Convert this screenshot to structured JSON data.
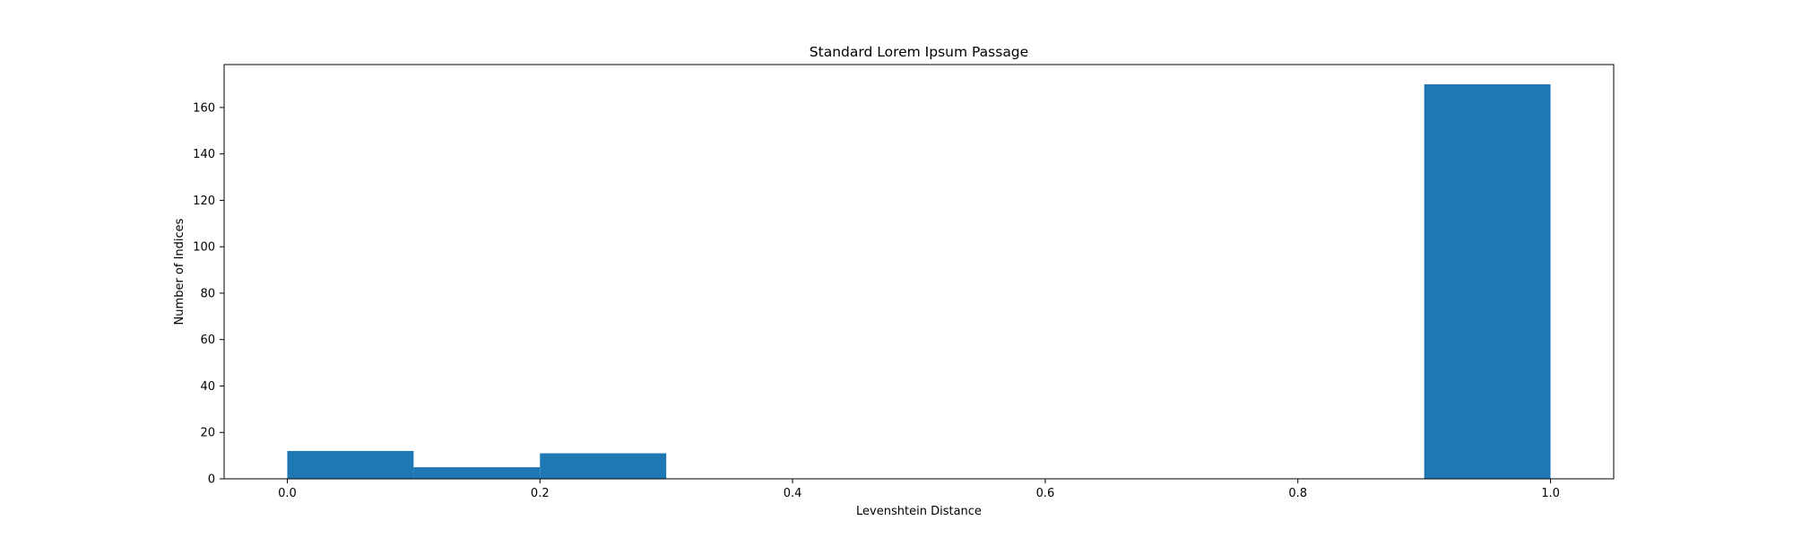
{
  "chart_data": {
    "type": "bar",
    "title": "Standard Lorem Ipsum Passage",
    "xlabel": "Levenshtein Distance",
    "ylabel": "Number of Indices",
    "xlim": [
      -0.05,
      1.05
    ],
    "ylim": [
      0,
      178.5
    ],
    "x_ticks": [
      0.0,
      0.2,
      0.4,
      0.6,
      0.8,
      1.0
    ],
    "x_tick_labels": [
      "0.0",
      "0.2",
      "0.4",
      "0.6",
      "0.8",
      "1.0"
    ],
    "y_ticks": [
      0,
      20,
      40,
      60,
      80,
      100,
      120,
      140,
      160
    ],
    "y_tick_labels": [
      "0",
      "20",
      "40",
      "60",
      "80",
      "100",
      "120",
      "140",
      "160"
    ],
    "bins": [
      {
        "start": 0.0,
        "end": 0.1,
        "value": 12
      },
      {
        "start": 0.1,
        "end": 0.2,
        "value": 5
      },
      {
        "start": 0.2,
        "end": 0.3,
        "value": 11
      },
      {
        "start": 0.3,
        "end": 0.4,
        "value": 0
      },
      {
        "start": 0.4,
        "end": 0.5,
        "value": 0
      },
      {
        "start": 0.5,
        "end": 0.6,
        "value": 0
      },
      {
        "start": 0.6,
        "end": 0.7,
        "value": 0
      },
      {
        "start": 0.7,
        "end": 0.8,
        "value": 0
      },
      {
        "start": 0.8,
        "end": 0.9,
        "value": 0
      },
      {
        "start": 0.9,
        "end": 1.0,
        "value": 170
      }
    ],
    "bar_color": "#1f77b4",
    "grid": false,
    "legend": "none"
  }
}
